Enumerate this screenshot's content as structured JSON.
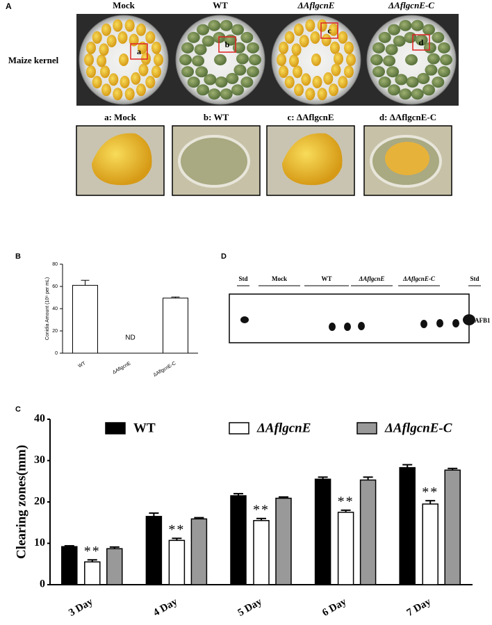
{
  "panel_a": {
    "label": "A",
    "row_label": "Maize kernel",
    "plates": [
      {
        "title": "Mock",
        "marker": "a",
        "zoom_title": "a: Mock"
      },
      {
        "title": "WT",
        "marker": "b",
        "zoom_title": "b: WT"
      },
      {
        "title": "ΔAflgcnE",
        "marker": "c",
        "zoom_title": "c: ΔAflgcnE"
      },
      {
        "title": "ΔAflgcnE-C",
        "marker": "d",
        "zoom_title": "d: ΔAflgcnE-C"
      }
    ]
  },
  "panel_d": {
    "label": "D",
    "lanes": [
      "Std",
      "Mock",
      "WT",
      "ΔAflgcnE",
      "ΔAflgcnE-C",
      "Std"
    ],
    "spot_label": "AFB1"
  },
  "chart_data": [
    {
      "panel": "B",
      "type": "bar",
      "ylabel": "Conidia Amount (10⁶ per mL)",
      "categories": [
        "WT",
        "ΔAflgcnE",
        "ΔAflgcnE-C"
      ],
      "values": [
        61,
        null,
        49.5
      ],
      "errors": [
        4.5,
        null,
        1
      ],
      "value_labels": [
        null,
        "ND",
        null
      ],
      "color": "#ffffff",
      "ylim": [
        0,
        80
      ],
      "yticks": [
        0,
        20,
        40,
        60,
        80
      ]
    },
    {
      "panel": "C",
      "type": "bar",
      "ylabel": "Clearing zones(mm)",
      "categories": [
        "3 Day",
        "4 Day",
        "5 Day",
        "6 Day",
        "7 Day"
      ],
      "series": [
        {
          "name": "WT",
          "color": "#000000",
          "values": [
            9.2,
            16.5,
            21.5,
            25.5,
            28.3
          ],
          "errors": [
            0.2,
            0.8,
            0.5,
            0.5,
            0.7
          ]
        },
        {
          "name": "ΔAflgcnE",
          "color": "#ffffff",
          "values": [
            5.5,
            10.7,
            15.5,
            17.5,
            19.5
          ],
          "errors": [
            0.5,
            0.5,
            0.5,
            0.5,
            0.8
          ],
          "significance": [
            "**",
            "**",
            "**",
            "**",
            "**"
          ]
        },
        {
          "name": "ΔAflgcnE-C",
          "color": "#999999",
          "values": [
            8.7,
            15.9,
            20.9,
            25.3,
            27.7
          ],
          "errors": [
            0.4,
            0.3,
            0.3,
            0.7,
            0.4
          ]
        }
      ],
      "ylim": [
        0,
        40
      ],
      "yticks": [
        0,
        10,
        20,
        30,
        40
      ],
      "legend": "top"
    }
  ]
}
